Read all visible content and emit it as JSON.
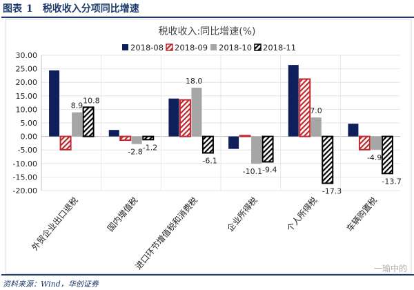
{
  "header": {
    "label": "图表",
    "number": "1",
    "title": "税收收入分项同比增速"
  },
  "source": "资料来源：Wind，华创证券",
  "watermark": "一瑜中的",
  "chart_data": {
    "type": "bar",
    "title": "税收收入:同比增速(%)",
    "categories": [
      "外贸企业出口退税",
      "国内增值税",
      "进口环节增值税和消费税",
      "企业所得税",
      "个人所得税",
      "车辆购置税"
    ],
    "series": [
      {
        "name": "2018-08",
        "color": "#0f1f5c",
        "pattern": "solid",
        "values": [
          24.4,
          2.4,
          14.0,
          -4.6,
          26.4,
          4.7
        ]
      },
      {
        "name": "2018-09",
        "color": "#c0272d",
        "pattern": "hatch",
        "values": [
          -4.9,
          -1.4,
          13.5,
          0.3,
          21.2,
          -4.9
        ]
      },
      {
        "name": "2018-10",
        "color": "#a6a6a6",
        "pattern": "solid",
        "values": [
          8.9,
          -2.8,
          18.0,
          -10.1,
          7.0,
          -4.9
        ]
      },
      {
        "name": "2018-11",
        "color": "#000000",
        "pattern": "hatch",
        "values": [
          10.8,
          -1.2,
          -6.1,
          -9.4,
          -17.3,
          -13.7
        ]
      }
    ],
    "data_labels": {
      "2018-10": [
        "8.9",
        "-2.8",
        "18.0",
        "-10.1",
        "7.0",
        "-4.9"
      ],
      "2018-11": [
        "10.8",
        "-1.2",
        "-6.1",
        "-9.4",
        "-17.3",
        "-13.7"
      ]
    },
    "yticks": [
      "30.00",
      "25.00",
      "20.00",
      "15.00",
      "10.00",
      "5.00",
      "0.00",
      "-5.00",
      "-10.00",
      "-15.00",
      "-20.00"
    ],
    "ylim": [
      -20,
      30
    ],
    "grid": true,
    "legend": "top"
  }
}
